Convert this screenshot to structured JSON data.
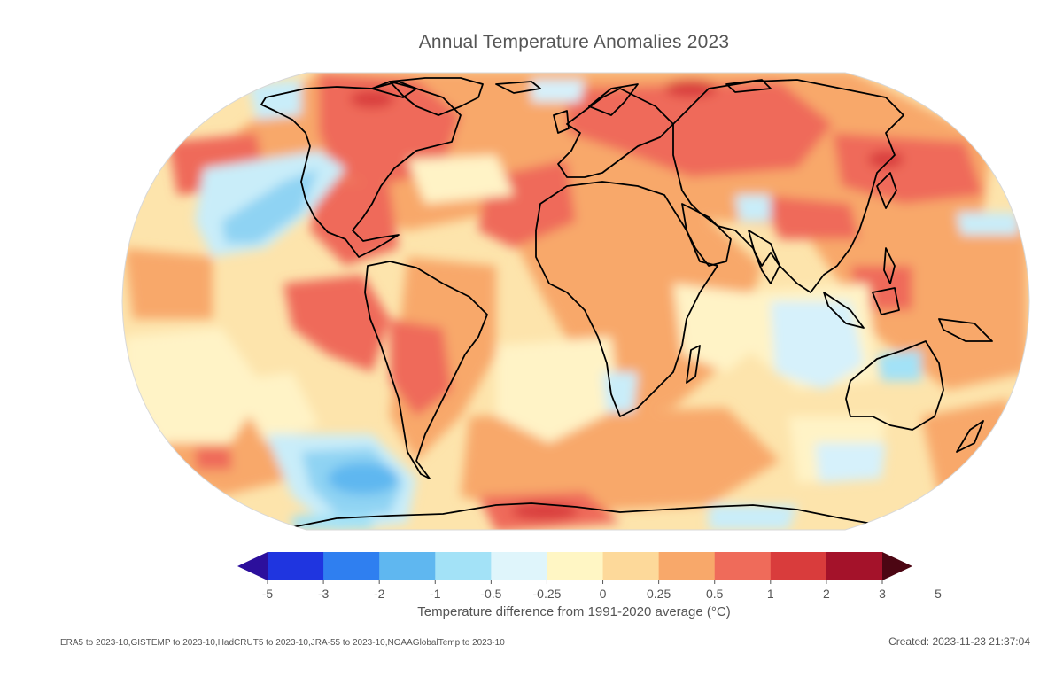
{
  "title": "Annual Temperature Anomalies 2023",
  "colorbar": {
    "label": "Temperature difference from 1991-2020 average (°C)",
    "ticks": [
      "-5",
      "-3",
      "-2",
      "-1",
      "-0.5",
      "-0.25",
      "0",
      "0.25",
      "0.5",
      "1",
      "2",
      "3",
      "5"
    ],
    "colors": [
      "#2c0f9c",
      "#1f35e0",
      "#2f7ff0",
      "#5fb7f0",
      "#a3e2f7",
      "#dff5fb",
      "#fff6c4",
      "#fdd99a",
      "#f8a86a",
      "#ef6b5a",
      "#d93c3c",
      "#a4122a",
      "#4c0613"
    ],
    "extends": "both"
  },
  "footer": {
    "sources": "ERA5 to 2023-10,GISTEMP to 2023-10,HadCRUT5 to 2023-10,JRA-55 to 2023-10,NOAAGlobalTemp to 2023-10",
    "created": "Created: 2023-11-23 21:37:04"
  },
  "map": {
    "projection": "robinson-like",
    "palette": {
      "ocean_base": "#fde9b3",
      "warm": "#f8a86a",
      "warmer": "#ef6b5a",
      "hot": "#d93c3c",
      "cool": "#a3e2f7",
      "cold": "#5fb7f0",
      "neutral": "#fff6c4",
      "coast": "#000000"
    }
  }
}
